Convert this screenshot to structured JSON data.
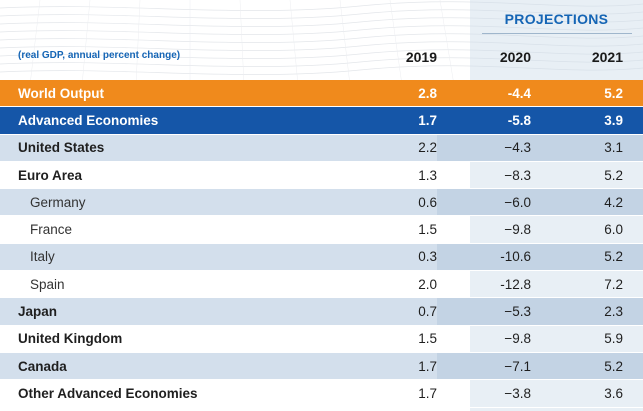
{
  "header": {
    "projections_label": "PROJECTIONS",
    "unit_label": "(real GDP, annual percent change)",
    "years": [
      "2019",
      "2020",
      "2021"
    ]
  },
  "colors": {
    "world_row": "#f08a1c",
    "advanced_row": "#1556a8",
    "shaded_row": "#d3dfec",
    "accent_text": "#1565b5"
  },
  "rows": [
    {
      "name": "World Output",
      "v2019": "2.8",
      "v2020": "-4.4",
      "v2021": "5.2"
    },
    {
      "name": "Advanced Economies",
      "v2019": "1.7",
      "v2020": "-5.8",
      "v2021": "3.9"
    },
    {
      "name": "United States",
      "v2019": "2.2",
      "v2020": "−4.3",
      "v2021": "3.1"
    },
    {
      "name": "Euro Area",
      "v2019": "1.3",
      "v2020": "−8.3",
      "v2021": "5.2"
    },
    {
      "name": "Germany",
      "v2019": "0.6",
      "v2020": "−6.0",
      "v2021": "4.2"
    },
    {
      "name": "France",
      "v2019": "1.5",
      "v2020": "−9.8",
      "v2021": "6.0"
    },
    {
      "name": "Italy",
      "v2019": "0.3",
      "v2020": "-10.6",
      "v2021": "5.2"
    },
    {
      "name": "Spain",
      "v2019": "2.0",
      "v2020": "-12.8",
      "v2021": "7.2"
    },
    {
      "name": "Japan",
      "v2019": "0.7",
      "v2020": "−5.3",
      "v2021": "2.3"
    },
    {
      "name": "United Kingdom",
      "v2019": "1.5",
      "v2020": "−9.8",
      "v2021": "5.9"
    },
    {
      "name": "Canada",
      "v2019": "1.7",
      "v2020": "−7.1",
      "v2021": "5.2"
    },
    {
      "name": "Other Advanced Economies",
      "v2019": "1.7",
      "v2020": "−3.8",
      "v2021": "3.6"
    }
  ]
}
